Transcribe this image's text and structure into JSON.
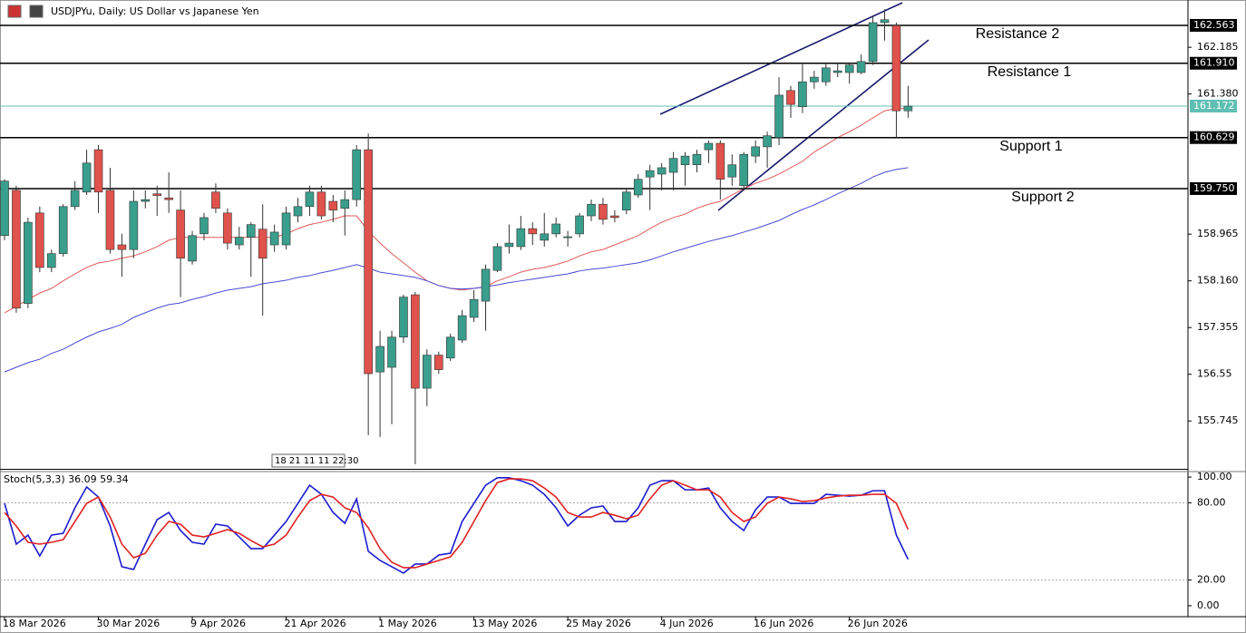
{
  "chart_data": [
    {
      "type": "candlestick",
      "title": "USDJPYu, Daily: US Dollar vs Japanese Yen",
      "annotation": "18 21 11 11 22:30",
      "categories": [
        "18 Mar 2026",
        null,
        null,
        null,
        null,
        null,
        null,
        null,
        "30 Mar 2026",
        null,
        null,
        null,
        null,
        null,
        null,
        null,
        "9 Apr 2026",
        null,
        null,
        null,
        null,
        null,
        null,
        null,
        "21 Apr 2026",
        null,
        null,
        null,
        null,
        null,
        null,
        null,
        "1 May 2026",
        null,
        null,
        null,
        null,
        null,
        null,
        null,
        "13 May 2026",
        null,
        null,
        null,
        null,
        null,
        null,
        null,
        "25 May 2026",
        null,
        null,
        null,
        null,
        null,
        null,
        null,
        "4 Jun 2026",
        null,
        null,
        null,
        null,
        null,
        null,
        null,
        "16 Jun 2026",
        null,
        null,
        null,
        null,
        null,
        null,
        null,
        "26 Jun 2026",
        null,
        null,
        null,
        null,
        null
      ],
      "ohlc": [
        [
          158.94,
          159.91,
          158.86,
          159.88
        ],
        [
          159.72,
          159.8,
          157.61,
          157.69
        ],
        [
          157.77,
          159.25,
          157.69,
          159.17
        ],
        [
          159.33,
          159.44,
          158.31,
          158.39
        ],
        [
          158.39,
          158.7,
          158.31,
          158.63
        ],
        [
          158.63,
          159.48,
          158.58,
          159.44
        ],
        [
          159.44,
          159.88,
          159.38,
          159.72
        ],
        [
          159.69,
          160.42,
          159.64,
          160.19
        ],
        [
          160.42,
          160.5,
          159.33,
          159.69
        ],
        [
          159.72,
          160.11,
          158.63,
          158.7
        ],
        [
          158.78,
          158.97,
          158.23,
          158.7
        ],
        [
          158.7,
          159.72,
          158.55,
          159.53
        ],
        [
          159.53,
          159.72,
          159.41,
          159.56
        ],
        [
          159.66,
          159.8,
          159.28,
          159.63
        ],
        [
          159.59,
          160.03,
          159.33,
          159.56
        ],
        [
          159.38,
          159.72,
          157.88,
          158.55
        ],
        [
          158.5,
          159.02,
          158.44,
          158.94
        ],
        [
          158.97,
          159.33,
          158.86,
          159.25
        ],
        [
          159.69,
          159.84,
          159.33,
          159.41
        ],
        [
          159.33,
          159.41,
          158.7,
          158.81
        ],
        [
          158.78,
          159.09,
          158.7,
          158.91
        ],
        [
          158.91,
          159.17,
          158.23,
          159.13
        ],
        [
          159.05,
          159.48,
          157.56,
          158.55
        ],
        [
          158.78,
          159.13,
          158.66,
          159.0
        ],
        [
          158.78,
          159.44,
          158.7,
          159.33
        ],
        [
          159.28,
          159.59,
          159.17,
          159.44
        ],
        [
          159.44,
          159.8,
          159.28,
          159.69
        ],
        [
          159.69,
          159.8,
          159.22,
          159.28
        ],
        [
          159.53,
          159.64,
          159.17,
          159.38
        ],
        [
          159.41,
          159.72,
          158.94,
          159.56
        ],
        [
          159.56,
          160.5,
          159.44,
          160.42
        ],
        [
          160.42,
          160.7,
          155.5,
          156.56
        ],
        [
          156.59,
          157.3,
          155.47,
          157.03
        ],
        [
          156.67,
          157.3,
          155.69,
          157.19
        ],
        [
          157.19,
          157.92,
          157.09,
          157.88
        ],
        [
          157.92,
          157.97,
          155.0,
          156.31
        ],
        [
          156.31,
          156.98,
          156.0,
          156.88
        ],
        [
          156.88,
          156.94,
          156.56,
          156.63
        ],
        [
          156.83,
          157.25,
          156.78,
          157.19
        ],
        [
          157.14,
          157.66,
          157.09,
          157.56
        ],
        [
          157.53,
          158.0,
          157.45,
          157.84
        ],
        [
          157.81,
          158.44,
          157.3,
          158.36
        ],
        [
          158.34,
          158.81,
          158.31,
          158.75
        ],
        [
          158.75,
          159.13,
          158.63,
          158.81
        ],
        [
          158.75,
          159.28,
          158.69,
          159.06
        ],
        [
          159.06,
          159.17,
          158.78,
          158.97
        ],
        [
          158.86,
          159.33,
          158.75,
          158.97
        ],
        [
          158.97,
          159.25,
          158.91,
          159.14
        ],
        [
          158.91,
          159.02,
          158.75,
          158.92
        ],
        [
          158.97,
          159.33,
          158.91,
          159.28
        ],
        [
          159.28,
          159.56,
          159.19,
          159.48
        ],
        [
          159.48,
          159.59,
          159.13,
          159.22
        ],
        [
          159.28,
          159.38,
          159.17,
          159.25
        ],
        [
          159.38,
          159.75,
          159.31,
          159.69
        ],
        [
          159.64,
          160.0,
          159.59,
          159.91
        ],
        [
          159.95,
          160.16,
          159.38,
          160.06
        ],
        [
          160.0,
          160.19,
          159.72,
          160.11
        ],
        [
          160.03,
          160.38,
          159.72,
          160.27
        ],
        [
          160.16,
          160.38,
          159.8,
          160.31
        ],
        [
          160.16,
          160.42,
          160.03,
          160.34
        ],
        [
          160.42,
          160.58,
          160.19,
          160.53
        ],
        [
          160.53,
          160.58,
          159.56,
          159.91
        ],
        [
          159.95,
          160.34,
          159.8,
          160.16
        ],
        [
          159.8,
          160.38,
          159.72,
          160.34
        ],
        [
          160.31,
          160.58,
          160.19,
          160.47
        ],
        [
          160.47,
          160.73,
          160.11,
          160.66
        ],
        [
          160.63,
          161.67,
          160.5,
          161.36
        ],
        [
          161.44,
          161.52,
          160.97,
          161.2
        ],
        [
          161.16,
          161.91,
          161.05,
          161.59
        ],
        [
          161.59,
          161.78,
          161.47,
          161.67
        ],
        [
          161.59,
          161.91,
          161.52,
          161.83
        ],
        [
          161.75,
          161.91,
          161.67,
          161.78
        ],
        [
          161.75,
          161.91,
          161.56,
          161.88
        ],
        [
          161.75,
          162.06,
          161.72,
          161.94
        ],
        [
          161.94,
          162.72,
          161.88,
          162.61
        ],
        [
          162.61,
          162.84,
          162.3,
          162.66
        ],
        [
          162.56,
          162.61,
          160.63,
          161.09
        ],
        [
          161.09,
          161.52,
          160.97,
          161.17
        ]
      ],
      "up_color": "#3a9e8c",
      "down_color": "#e0524c",
      "lines": [
        {
          "color": "#e05a5a",
          "values": [
            157.61,
            157.72,
            157.84,
            157.95,
            158.03,
            158.16,
            158.28,
            158.39,
            158.47,
            158.5,
            158.55,
            158.59,
            158.66,
            158.75,
            158.86,
            158.91,
            158.91,
            158.91,
            158.91,
            158.91,
            158.91,
            158.91,
            158.91,
            158.91,
            158.97,
            159.06,
            159.13,
            159.17,
            159.22,
            159.28,
            159.28,
            159.02,
            158.81,
            158.63,
            158.47,
            158.31,
            158.16,
            158.08,
            158.03,
            158.0,
            158.03,
            158.06,
            158.16,
            158.23,
            158.31,
            158.36,
            158.39,
            158.44,
            158.5,
            158.59,
            158.66,
            158.7,
            158.78,
            158.86,
            158.94,
            159.06,
            159.17,
            159.25,
            159.31,
            159.41,
            159.48,
            159.53,
            159.64,
            159.75,
            159.84,
            159.91,
            160.0,
            160.11,
            160.22,
            160.38,
            160.5,
            160.63,
            160.73,
            160.84,
            160.97,
            161.09,
            161.13,
            161.13
          ]
        },
        {
          "color": "#4a4ad8",
          "values": [
            156.59,
            156.67,
            156.75,
            156.81,
            156.91,
            156.98,
            157.09,
            157.19,
            157.28,
            157.34,
            157.41,
            157.53,
            157.61,
            157.69,
            157.75,
            157.78,
            157.84,
            157.89,
            157.95,
            158.0,
            158.03,
            158.06,
            158.11,
            158.14,
            158.17,
            158.22,
            158.25,
            158.3,
            158.34,
            158.39,
            158.44,
            158.38,
            158.31,
            158.28,
            158.25,
            158.22,
            158.16,
            158.08,
            158.03,
            158.02,
            158.03,
            158.06,
            158.09,
            158.13,
            158.16,
            158.19,
            158.22,
            158.25,
            158.28,
            158.33,
            158.36,
            158.38,
            158.41,
            158.44,
            158.47,
            158.52,
            158.59,
            158.66,
            158.72,
            158.78,
            158.84,
            158.89,
            158.94,
            159.0,
            159.06,
            159.13,
            159.2,
            159.3,
            159.39,
            159.47,
            159.56,
            159.66,
            159.75,
            159.84,
            159.95,
            160.03,
            160.08,
            160.11
          ]
        }
      ],
      "levels": [
        {
          "name": "Resistance 2",
          "value": 162.563
        },
        {
          "name": "Resistance 1",
          "value": 161.91,
          "value_label": "161.910"
        },
        {
          "name": "Support 1",
          "value": 160.629
        },
        {
          "name": "Support 2",
          "value": 159.75,
          "value_label": "159.750"
        }
      ],
      "last_price": 161.172,
      "last_price_color": "#5fbfb4",
      "ylim": [
        154.92,
        163.0
      ],
      "yticks": [
        162.185,
        {
          "value": 161.38,
          "label": "161.380"
        },
        158.965,
        {
          "value": 158.16,
          "label": "158.160"
        },
        157.355,
        156.55,
        155.745
      ]
    },
    {
      "type": "line",
      "title": "Stoch(5,3,3) 36.09 59.34",
      "series": [
        {
          "color": "#1c1cd0",
          "values": [
            79.6,
            47.9,
            54.9,
            38.7,
            54.9,
            56.3,
            76.1,
            92.3,
            84.5,
            62.0,
            30.3,
            28.2,
            47.9,
            66.9,
            72.5,
            58.5,
            49.3,
            47.9,
            63.4,
            62.0,
            53.5,
            44.4,
            44.4,
            54.9,
            65.5,
            79.6,
            93.7,
            86.6,
            72.5,
            64.1,
            83.1,
            42.3,
            35.2,
            30.3,
            25.4,
            32.4,
            32.4,
            39.4,
            40.8,
            65.5,
            79.6,
            93.7,
            99.5,
            99.5,
            97.2,
            93.7,
            86.6,
            76.1,
            62.0,
            70.4,
            76.1,
            77.5,
            65.5,
            65.5,
            76.1,
            93.7,
            97.2,
            97.2,
            90.1,
            90.1,
            91.5,
            76.1,
            65.5,
            58.5,
            74.6,
            84.5,
            84.5,
            79.6,
            79.6,
            79.6,
            86.6,
            85.9,
            85.2,
            85.9,
            89.4,
            89.4,
            54.9,
            36.09
          ]
        },
        {
          "color": "#e02222",
          "values": [
            72.5,
            62.0,
            49.3,
            47.9,
            49.3,
            51.4,
            65.5,
            79.6,
            84.5,
            69.0,
            47.9,
            37.3,
            40.8,
            54.9,
            65.5,
            63.4,
            54.9,
            53.5,
            56.3,
            59.2,
            56.3,
            50.7,
            45.8,
            47.9,
            54.9,
            69.0,
            81.7,
            86.6,
            84.5,
            76.1,
            72.5,
            60.6,
            44.4,
            33.8,
            29.6,
            29.6,
            32.4,
            35.2,
            38.0,
            49.3,
            65.5,
            81.7,
            95.8,
            98.6,
            98.6,
            97.2,
            91.5,
            84.5,
            72.5,
            69.0,
            69.0,
            72.5,
            70.4,
            67.6,
            70.4,
            83.1,
            93.7,
            97.2,
            93.7,
            90.1,
            90.1,
            84.5,
            72.5,
            65.5,
            69.0,
            79.6,
            84.5,
            83.1,
            81.0,
            81.7,
            83.8,
            85.2,
            85.9,
            85.9,
            86.6,
            86.6,
            79.6,
            59.34
          ]
        }
      ],
      "levels": [
        80,
        20
      ],
      "ylim": [
        -8.5,
        105
      ],
      "yticks": [
        {
          "value": 100,
          "label": "100.00"
        },
        {
          "value": 80,
          "label": "80.00"
        },
        {
          "value": 20,
          "label": "20.00"
        },
        {
          "value": 0,
          "label": "0.00"
        }
      ]
    }
  ]
}
